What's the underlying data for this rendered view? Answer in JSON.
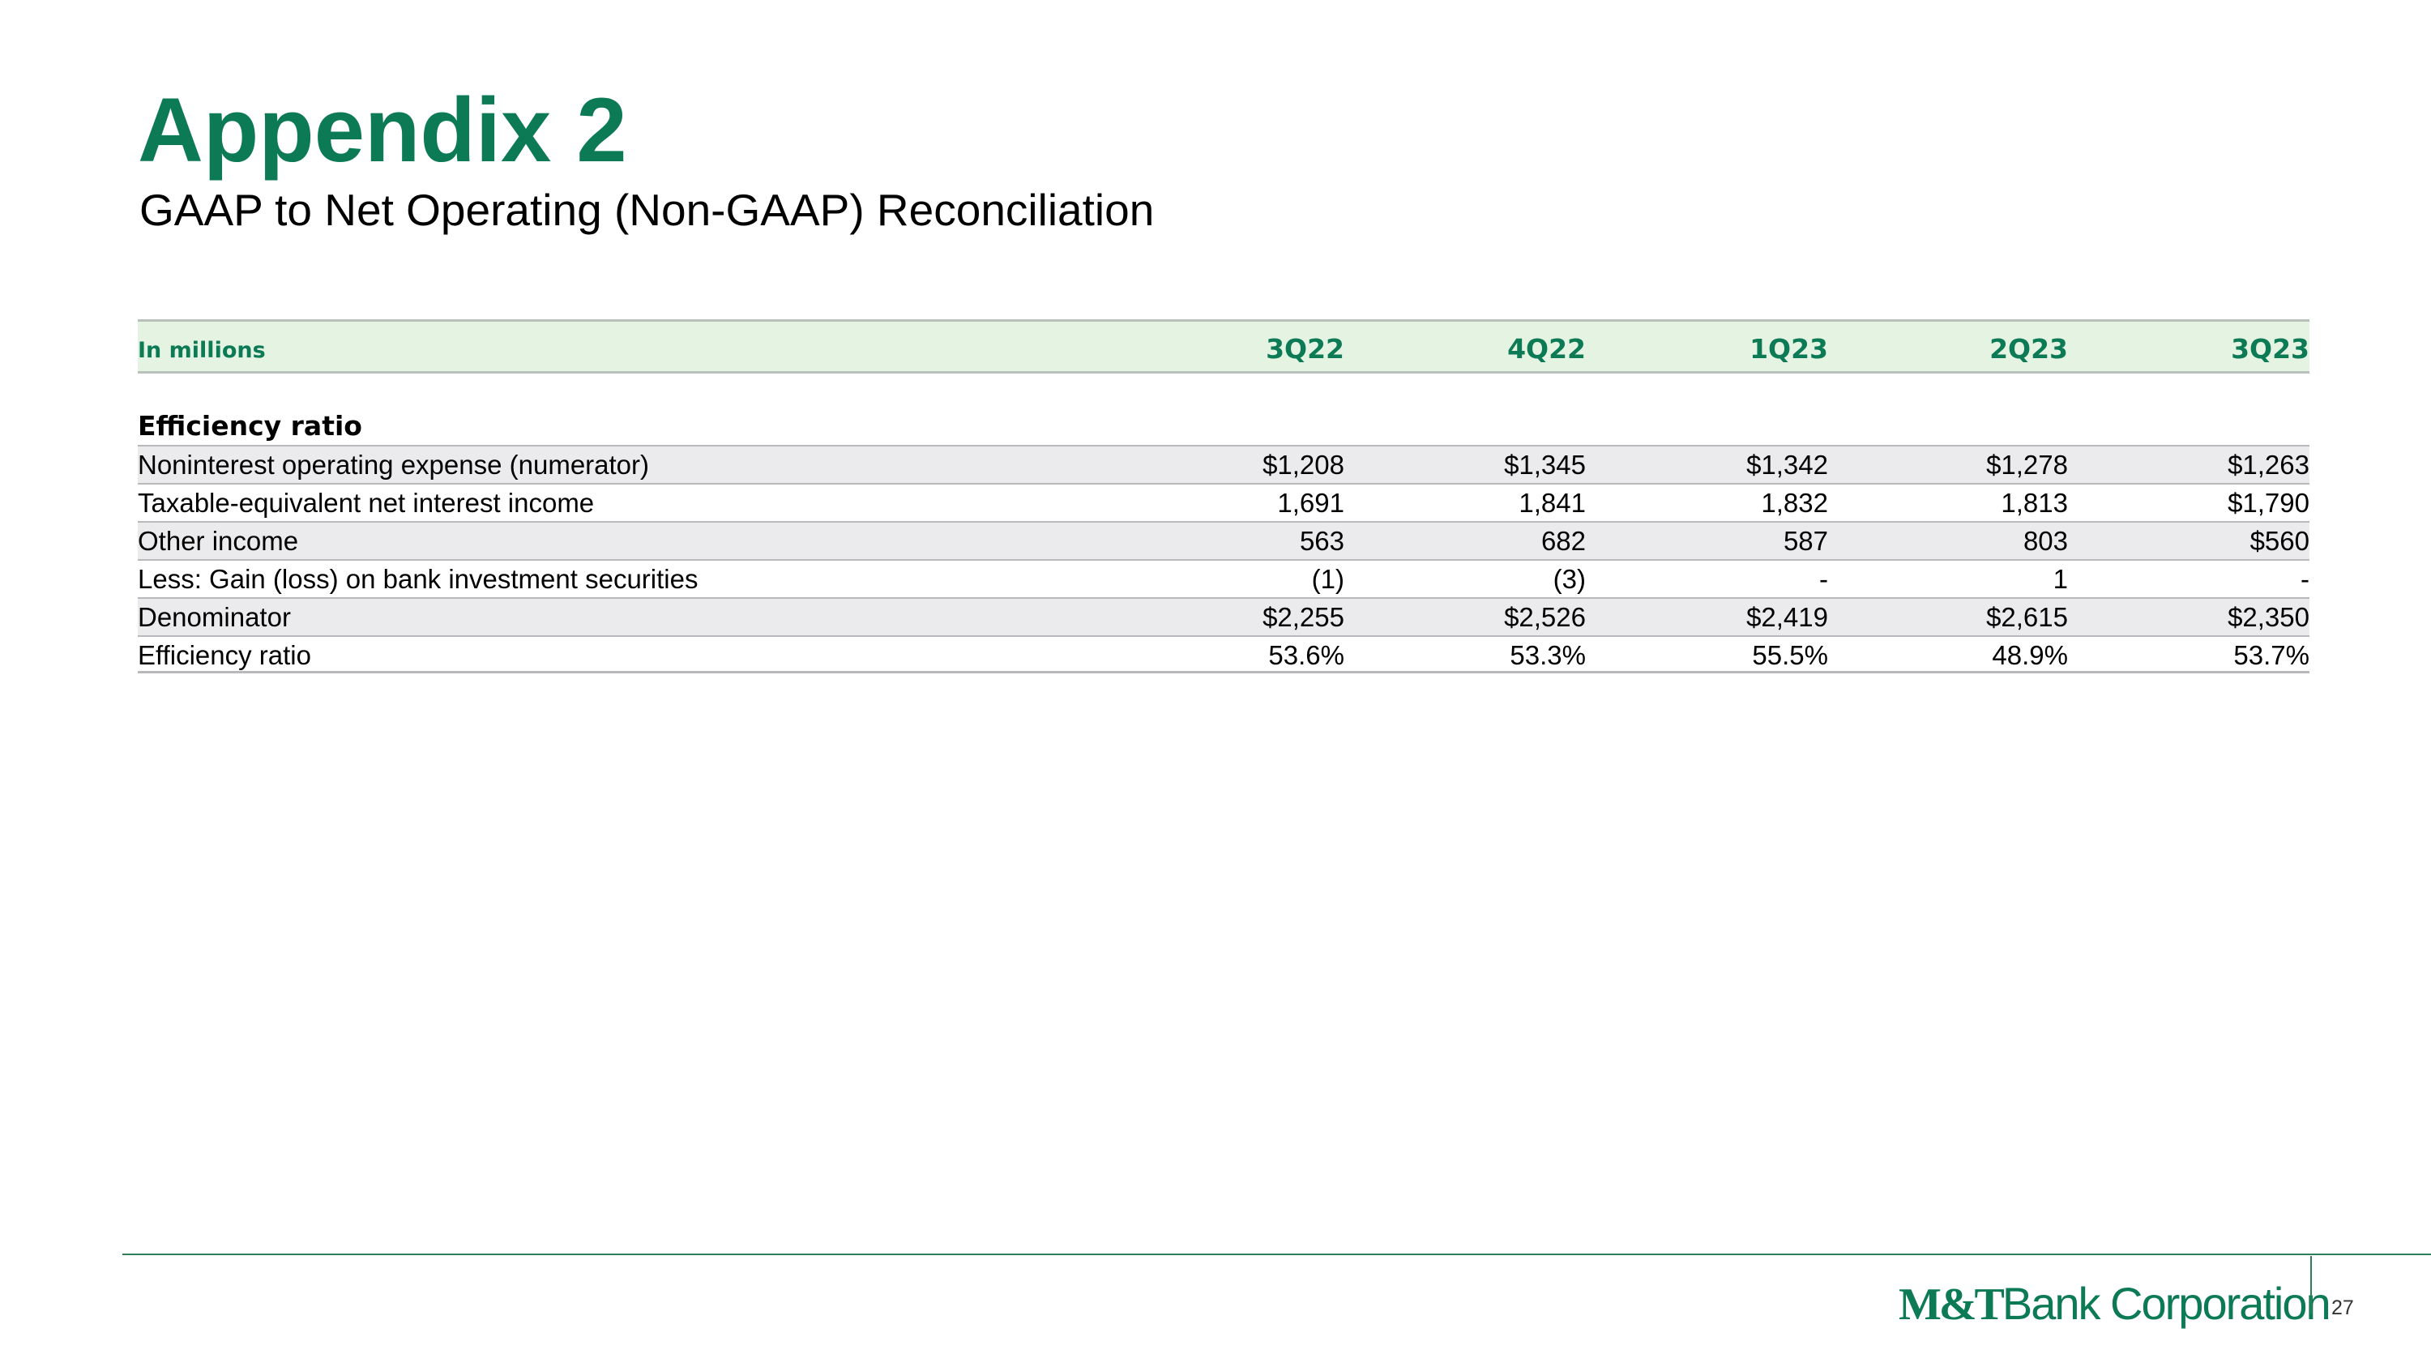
{
  "header": {
    "title": "Appendix 2",
    "subtitle": "GAAP to Net Operating (Non-GAAP) Reconciliation"
  },
  "table": {
    "unit_label": "In millions",
    "columns": [
      "3Q22",
      "4Q22",
      "1Q23",
      "2Q23",
      "3Q23"
    ],
    "section": "Efficiency ratio",
    "rows": [
      {
        "label": "Noninterest operating expense (numerator)",
        "values": [
          "$1,208",
          "$1,345",
          "$1,342",
          "$1,278",
          "$1,263"
        ]
      },
      {
        "label": "Taxable-equivalent net interest income",
        "values": [
          "1,691",
          "1,841",
          "1,832",
          "1,813",
          "$1,790"
        ]
      },
      {
        "label": "Other income",
        "values": [
          "563",
          "682",
          "587",
          "803",
          "$560"
        ]
      },
      {
        "label": "Less: Gain (loss) on bank investment securities",
        "values": [
          "(1)",
          "(3)",
          "-",
          "1",
          "-"
        ]
      },
      {
        "label": "Denominator",
        "values": [
          "$2,255",
          "$2,526",
          "$2,419",
          "$2,615",
          "$2,350"
        ]
      },
      {
        "label": "Efficiency ratio",
        "values": [
          "53.6%",
          "53.3%",
          "55.5%",
          "48.9%",
          "53.7%"
        ]
      }
    ]
  },
  "footer": {
    "logo_mark": "M&T",
    "logo_text": "Bank Corporation",
    "page": "27"
  }
}
